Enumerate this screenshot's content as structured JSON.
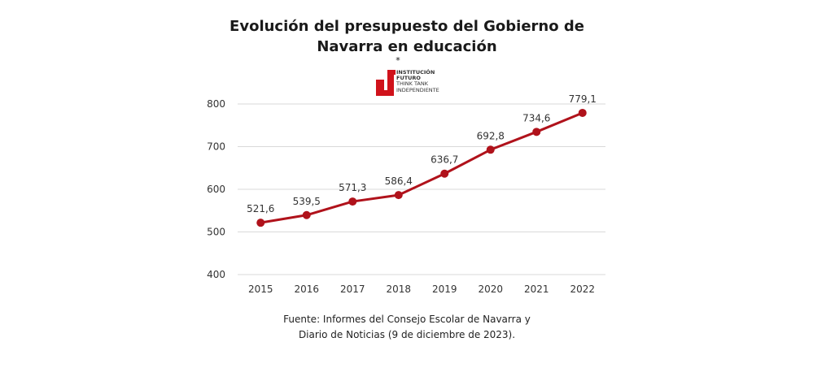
{
  "title_lines": [
    "Evolución del presupuesto del Gobierno de",
    "Navarra en educación"
  ],
  "logo": {
    "mark": "*",
    "lines": [
      "INSTITUCIÓN",
      "FUTURO",
      "THINK TANK",
      "INDEPENDIENTE"
    ],
    "color": "#d0121b"
  },
  "source_lines": [
    "Fuente: Informes del Consejo Escolar de Navarra y",
    "Diario de Noticias (9 de diciembre de 2023)."
  ],
  "chart_data": {
    "type": "line",
    "categories": [
      "2015",
      "2016",
      "2017",
      "2018",
      "2019",
      "2020",
      "2021",
      "2022"
    ],
    "series": [
      {
        "values": [
          521.6,
          539.5,
          571.3,
          586.4,
          636.7,
          692.8,
          734.6,
          779.1
        ],
        "labels": [
          "521,6",
          "539,5",
          "571,3",
          "586,4",
          "636,7",
          "692,8",
          "734,6",
          "779,1"
        ],
        "color": "#b0121b"
      }
    ],
    "ylim": [
      400,
      800
    ],
    "yticks": [
      400,
      500,
      600,
      700,
      800
    ],
    "grid": true,
    "gridColor": "#d9d9d9",
    "legend": "none",
    "xlabel": "",
    "ylabel": ""
  }
}
